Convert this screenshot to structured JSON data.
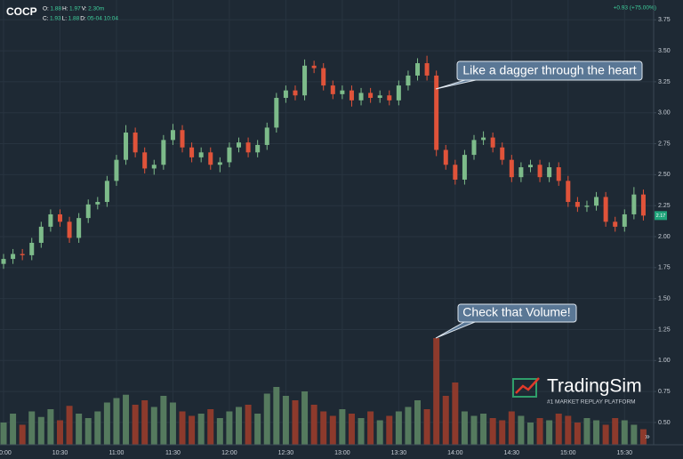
{
  "header": {
    "symbol": "COCP",
    "legend_row1": [
      {
        "label": "O:",
        "value": "1.88"
      },
      {
        "label": "H:",
        "value": "1.97"
      },
      {
        "label": "V:",
        "value": "2.30m"
      }
    ],
    "legend_row2": [
      {
        "label": "C:",
        "value": "1.93"
      },
      {
        "label": "L:",
        "value": "1.88"
      },
      {
        "label": "D:",
        "value": "05-04 10:04"
      }
    ],
    "change": "+0.93 (+75.00%)"
  },
  "chart_data": {
    "type": "candlestick",
    "categories": [
      "10:00",
      null,
      null,
      null,
      null,
      null,
      "10:30",
      null,
      null,
      null,
      null,
      null,
      "11:00",
      null,
      null,
      null,
      null,
      null,
      "11:30",
      null,
      null,
      null,
      null,
      null,
      "12:00",
      null,
      null,
      null,
      null,
      null,
      "12:30",
      null,
      null,
      null,
      null,
      null,
      "13:00",
      null,
      null,
      null,
      null,
      null,
      "13:30",
      null,
      null,
      null,
      null,
      null,
      "14:00",
      null,
      null,
      null,
      null,
      null,
      "14:30",
      null,
      null,
      null,
      null,
      null,
      "15:00",
      null,
      null,
      null,
      null,
      null,
      "15:30",
      null,
      null
    ],
    "open": [
      1.78,
      1.82,
      1.86,
      1.85,
      1.95,
      2.08,
      2.18,
      2.12,
      1.99,
      2.15,
      2.26,
      2.28,
      2.45,
      2.62,
      2.84,
      2.68,
      2.55,
      2.58,
      2.78,
      2.86,
      2.72,
      2.64,
      2.68,
      2.58,
      2.6,
      2.72,
      2.76,
      2.68,
      2.74,
      2.88,
      3.12,
      3.18,
      3.14,
      3.38,
      3.36,
      3.22,
      3.15,
      3.18,
      3.1,
      3.16,
      3.12,
      3.14,
      3.1,
      3.22,
      3.3,
      3.4,
      3.3,
      2.7,
      2.58,
      2.46,
      2.66,
      2.78,
      2.8,
      2.72,
      2.62,
      2.48,
      2.56,
      2.58,
      2.48,
      2.56,
      2.45,
      2.28,
      2.24,
      2.25,
      2.32,
      2.12,
      2.08,
      2.18,
      2.34
    ],
    "high": [
      1.86,
      1.9,
      1.9,
      1.99,
      2.12,
      2.22,
      2.22,
      2.16,
      2.19,
      2.3,
      2.32,
      2.49,
      2.66,
      2.9,
      2.88,
      2.72,
      2.62,
      2.82,
      2.91,
      2.9,
      2.76,
      2.72,
      2.72,
      2.64,
      2.76,
      2.8,
      2.8,
      2.78,
      2.92,
      3.16,
      3.22,
      3.22,
      3.43,
      3.42,
      3.4,
      3.26,
      3.22,
      3.22,
      3.2,
      3.2,
      3.18,
      3.18,
      3.26,
      3.34,
      3.44,
      3.46,
      3.34,
      2.74,
      2.62,
      2.7,
      2.82,
      2.85,
      2.84,
      2.76,
      2.66,
      2.6,
      2.62,
      2.62,
      2.6,
      2.6,
      2.49,
      2.32,
      2.29,
      2.36,
      2.36,
      2.16,
      2.22,
      2.4,
      2.38
    ],
    "low": [
      1.74,
      1.78,
      1.81,
      1.81,
      1.91,
      2.04,
      2.08,
      1.95,
      1.95,
      2.11,
      2.22,
      2.24,
      2.41,
      2.58,
      2.64,
      2.51,
      2.5,
      2.54,
      2.74,
      2.68,
      2.6,
      2.6,
      2.54,
      2.52,
      2.56,
      2.68,
      2.64,
      2.64,
      2.7,
      2.84,
      3.08,
      3.1,
      3.1,
      3.32,
      3.18,
      3.11,
      3.11,
      3.05,
      3.06,
      3.08,
      3.08,
      3.06,
      3.06,
      3.18,
      3.26,
      3.26,
      2.65,
      2.54,
      2.42,
      2.42,
      2.62,
      2.74,
      2.68,
      2.58,
      2.44,
      2.44,
      2.52,
      2.44,
      2.44,
      2.41,
      2.24,
      2.2,
      2.2,
      2.21,
      2.08,
      2.04,
      2.04,
      2.14,
      2.13
    ],
    "close": [
      1.82,
      1.86,
      1.85,
      1.95,
      2.08,
      2.18,
      2.12,
      1.99,
      2.15,
      2.26,
      2.28,
      2.45,
      2.62,
      2.84,
      2.68,
      2.55,
      2.58,
      2.78,
      2.86,
      2.72,
      2.64,
      2.68,
      2.58,
      2.6,
      2.72,
      2.76,
      2.68,
      2.74,
      2.88,
      3.12,
      3.18,
      3.14,
      3.38,
      3.36,
      3.22,
      3.15,
      3.18,
      3.1,
      3.16,
      3.12,
      3.14,
      3.1,
      3.22,
      3.3,
      3.4,
      3.3,
      2.7,
      2.58,
      2.46,
      2.66,
      2.78,
      2.8,
      2.72,
      2.62,
      2.48,
      2.56,
      2.58,
      2.48,
      2.56,
      2.45,
      2.28,
      2.24,
      2.25,
      2.32,
      2.12,
      2.08,
      2.18,
      2.34,
      2.17
    ],
    "volume": [
      20,
      28,
      18,
      30,
      25,
      32,
      22,
      35,
      28,
      24,
      30,
      38,
      42,
      45,
      36,
      40,
      34,
      44,
      38,
      30,
      26,
      28,
      32,
      24,
      30,
      34,
      36,
      28,
      46,
      52,
      44,
      40,
      48,
      36,
      30,
      26,
      32,
      28,
      24,
      30,
      22,
      26,
      30,
      34,
      40,
      32,
      96,
      44,
      56,
      30,
      26,
      28,
      24,
      22,
      30,
      26,
      20,
      24,
      22,
      28,
      26,
      20,
      24,
      22,
      18,
      24,
      22,
      18,
      14
    ],
    "ylim": [
      0.32,
      3.91
    ],
    "y2lim": [
      0,
      400
    ],
    "yticks": [
      {
        "value": 0.5,
        "label": "0.50"
      },
      {
        "value": 0.75,
        "label": "0.75"
      },
      {
        "value": 1,
        "label": "1.00"
      },
      {
        "value": 1.25,
        "label": "1.25"
      },
      {
        "value": 1.5,
        "label": "1.50"
      },
      {
        "value": 1.75,
        "label": "1.75"
      },
      {
        "value": 2,
        "label": "2.00"
      },
      {
        "value": 2.25,
        "label": "2.25"
      },
      {
        "value": 2.5,
        "label": "2.50"
      },
      {
        "value": 2.75,
        "label": "2.75"
      },
      {
        "value": 3,
        "label": "3.00"
      },
      {
        "value": 3.25,
        "label": "3.25"
      },
      {
        "value": 3.5,
        "label": "3.50"
      },
      {
        "value": 3.75,
        "label": "3.75"
      }
    ],
    "grid": true,
    "up_color": "#7dbb8a",
    "down_color": "#e0533a",
    "volume_up_color": "#557a5e",
    "volume_down_color": "#8d3a2c",
    "annotations": [
      "Like a dagger through the heart",
      "Check that Volume!"
    ]
  },
  "logo": {
    "name": "TradingSim",
    "tagline": "#1 MARKET REPLAY PLATFORM"
  }
}
